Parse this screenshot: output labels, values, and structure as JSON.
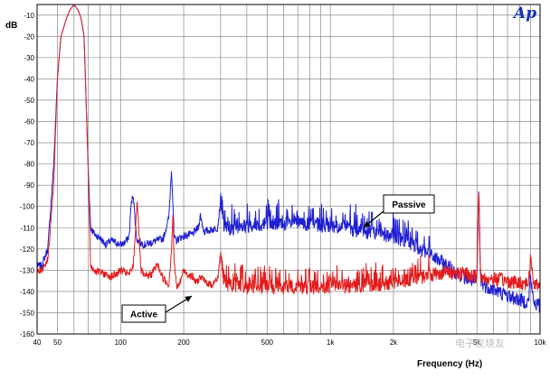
{
  "logo_text": "Ap",
  "watermark": "电子发烧友",
  "chart_data": {
    "type": "line",
    "title": "",
    "xlabel": "Frequency (Hz)",
    "ylabel": "dB",
    "x_scale": "log",
    "xlim": [
      40,
      10000
    ],
    "ylim": [
      -160,
      -5
    ],
    "grid": true,
    "x_tick_labels": [
      "40",
      "50",
      "100",
      "200",
      "500",
      "1k",
      "2k",
      "5k",
      "10k"
    ],
    "x_tick_values": [
      40,
      50,
      100,
      200,
      500,
      1000,
      2000,
      5000,
      10000
    ],
    "y_tick_labels": [
      "-10",
      "-20",
      "-30",
      "-40",
      "-50",
      "-60",
      "-70",
      "-80",
      "-90",
      "-100",
      "-110",
      "-120",
      "-130",
      "-140",
      "-150",
      "-160"
    ],
    "y_tick_values": [
      -10,
      -20,
      -30,
      -40,
      -50,
      -60,
      -70,
      -80,
      -90,
      -100,
      -110,
      -120,
      -130,
      -140,
      -150,
      -160
    ],
    "colors": {
      "Passive": "#1e1ed2",
      "Active": "#e41b1b"
    },
    "series": [
      {
        "name": "Passive",
        "x": [
          40,
          42,
          45,
          48,
          50,
          52,
          55,
          57,
          59,
          60,
          61,
          63,
          65,
          67,
          68,
          70,
          72,
          75,
          80,
          85,
          90,
          95,
          100,
          105,
          110,
          112,
          115,
          118,
          120,
          125,
          130,
          140,
          150,
          160,
          170,
          175,
          178,
          180,
          185,
          190,
          200,
          220,
          235,
          240,
          250,
          270,
          290,
          300,
          310,
          350,
          400,
          500,
          700,
          1000,
          1500,
          2000,
          2500,
          3000,
          3500,
          4000,
          4500,
          4800,
          5000,
          5100,
          5200,
          5400,
          6000,
          7000,
          8000,
          8800,
          9000,
          9300,
          10000
        ],
        "y": [
          -128,
          -128,
          -120,
          -80,
          -40,
          -20,
          -12,
          -8,
          -6,
          -5,
          -6,
          -8,
          -12,
          -20,
          -40,
          -80,
          -110,
          -113,
          -115,
          -118,
          -116,
          -117,
          -118,
          -117,
          -114,
          -100,
          -94,
          -110,
          -116,
          -117,
          -118,
          -117,
          -116,
          -115,
          -105,
          -82,
          -100,
          -115,
          -116,
          -115,
          -114,
          -113,
          -110,
          -104,
          -112,
          -111,
          -110,
          -97,
          -110,
          -110,
          -109,
          -108,
          -108,
          -109,
          -112,
          -114,
          -118,
          -123,
          -127,
          -131,
          -134,
          -135,
          -136,
          -90,
          -135,
          -137,
          -139,
          -142,
          -144,
          -145,
          -133,
          -145,
          -147
        ]
      },
      {
        "name": "Active",
        "x": [
          40,
          42,
          45,
          48,
          50,
          52,
          55,
          57,
          59,
          60,
          61,
          63,
          65,
          67,
          68,
          70,
          72,
          75,
          80,
          85,
          90,
          95,
          100,
          105,
          110,
          115,
          118,
          120,
          125,
          130,
          140,
          150,
          155,
          160,
          170,
          175,
          178,
          180,
          185,
          190,
          200,
          210,
          220,
          230,
          240,
          250,
          270,
          290,
          300,
          310,
          350,
          400,
          500,
          700,
          1000,
          1500,
          2000,
          2500,
          3000,
          3500,
          4000,
          4500,
          4800,
          5000,
          5100,
          5200,
          5400,
          6000,
          7000,
          8000,
          8800,
          9000,
          9300,
          10000
        ],
        "y": [
          -130,
          -130,
          -125,
          -90,
          -40,
          -20,
          -12,
          -8,
          -6,
          -5,
          -6,
          -8,
          -12,
          -20,
          -40,
          -80,
          -128,
          -130,
          -131,
          -132,
          -133,
          -132,
          -130,
          -131,
          -132,
          -128,
          -110,
          -96,
          -130,
          -133,
          -132,
          -127,
          -131,
          -134,
          -137,
          -120,
          -102,
          -126,
          -138,
          -137,
          -130,
          -132,
          -133,
          -136,
          -133,
          -135,
          -137,
          -134,
          -122,
          -136,
          -137,
          -138,
          -138,
          -138,
          -138,
          -137,
          -136,
          -134,
          -132,
          -131,
          -131,
          -132,
          -133,
          -133,
          -88,
          -133,
          -134,
          -134,
          -135,
          -136,
          -136,
          -124,
          -136,
          -137
        ]
      }
    ],
    "annotations": [
      {
        "text": "Passive",
        "series": "Passive",
        "x": 2100
      },
      {
        "text": "Active",
        "series": "Active",
        "x": 290
      }
    ]
  }
}
